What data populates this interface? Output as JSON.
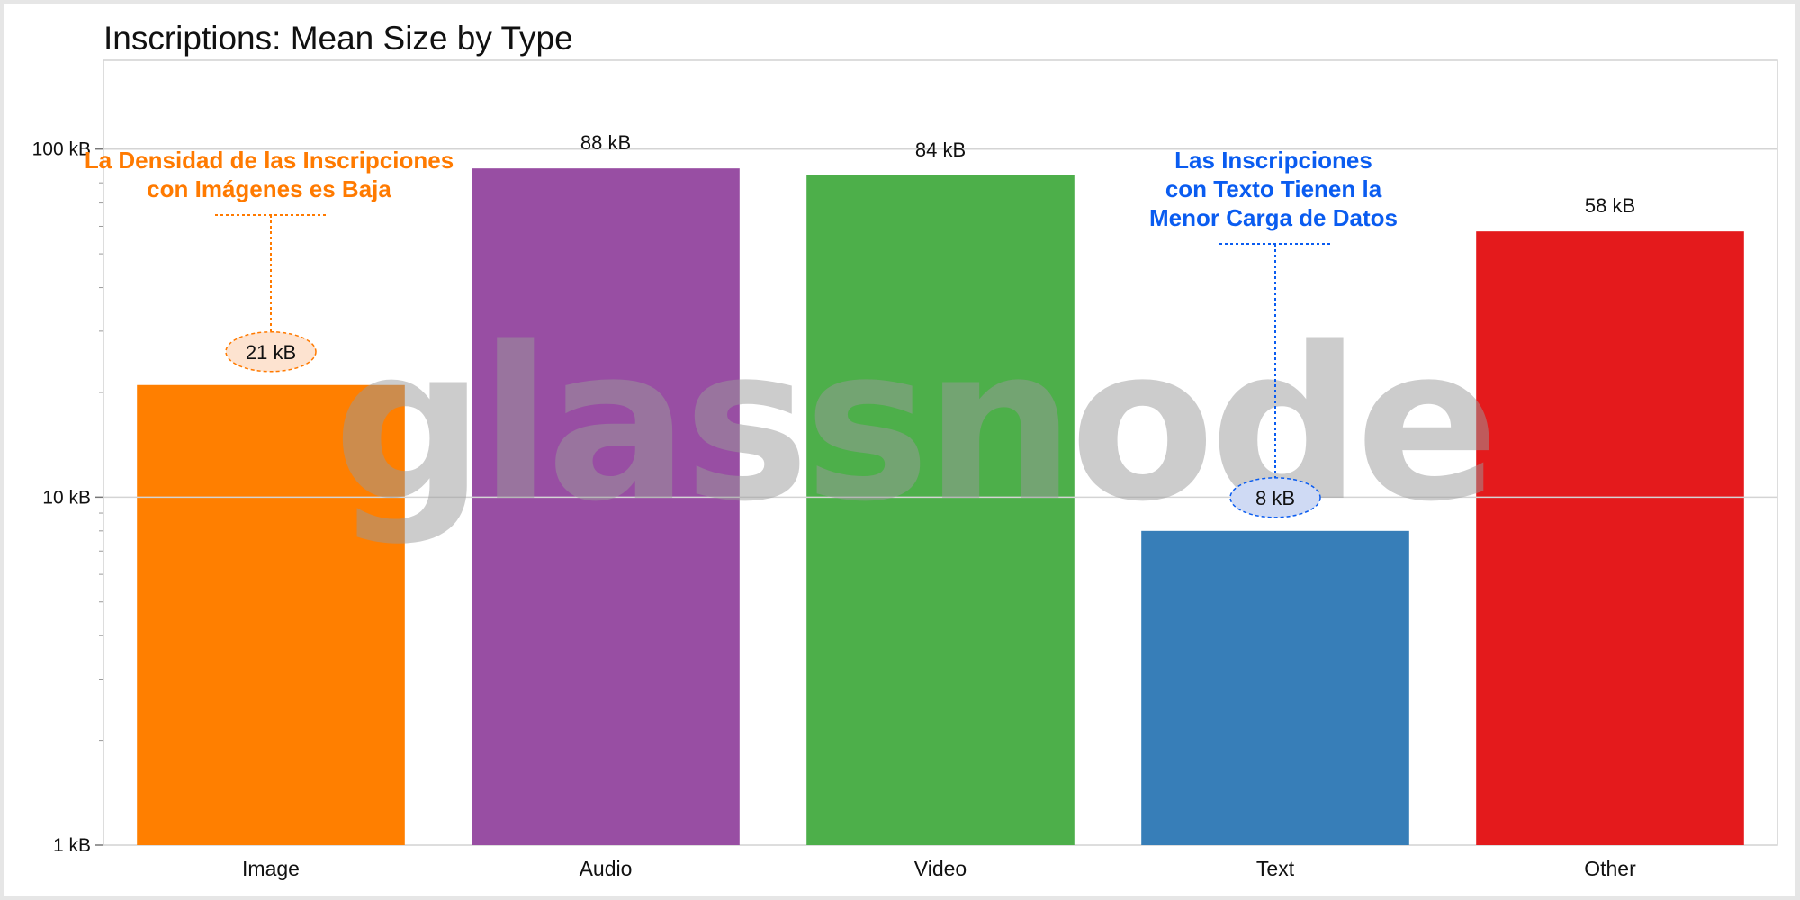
{
  "chart_data": {
    "type": "bar",
    "title": "Inscriptions: Mean Size by Type",
    "categories": [
      "Image",
      "Audio",
      "Video",
      "Text",
      "Other"
    ],
    "values": [
      21,
      88,
      84,
      8,
      58
    ],
    "value_labels": [
      "21 kB",
      "88 kB",
      "84 kB",
      "8 kB",
      "58 kB"
    ],
    "colors": [
      "#ff7f00",
      "#984ea3",
      "#4daf4a",
      "#377eb8",
      "#e41a1c"
    ],
    "y_scale": "log",
    "ylim": [
      1,
      180
    ],
    "y_ticks": [
      {
        "value": 1,
        "label": "1 kB"
      },
      {
        "value": 10,
        "label": "10 kB"
      },
      {
        "value": 100,
        "label": "100 kB"
      }
    ],
    "grid": true,
    "xlabel": "",
    "ylabel": "",
    "annotations": [
      {
        "category_index": 0,
        "lines": [
          "La Densidad de las Inscripciones",
          "con Imágenes es Baja"
        ],
        "color": "#ff7a00",
        "fill": "#fde3d0"
      },
      {
        "category_index": 3,
        "lines": [
          "Las Inscripciones",
          "con Texto Tienen la",
          "Menor Carga de Datos"
        ],
        "color": "#0a5cf0",
        "fill": "#cfdaf4"
      }
    ],
    "watermark": "glassnode"
  }
}
